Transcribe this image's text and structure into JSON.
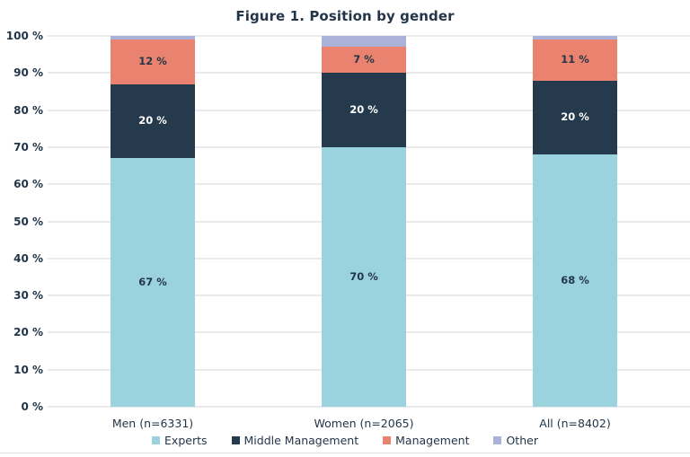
{
  "title": "Figure 1. Position by gender",
  "chart_data": {
    "type": "bar",
    "subtype": "stacked_percentage_column",
    "title": "Figure 1. Position by gender",
    "categories": [
      "Men (n=6331)",
      "Women (n=2065)",
      "All (n=8402)"
    ],
    "series": [
      {
        "name": "Experts",
        "color": "#9ad2de",
        "values": [
          67,
          70,
          68
        ],
        "labels": [
          "67 %",
          "70 %",
          "68 %"
        ],
        "label_color": "#233649"
      },
      {
        "name": "Middle Management",
        "color": "#263a4d",
        "values": [
          20,
          20,
          20
        ],
        "labels": [
          "20 %",
          "20 %",
          "20 %"
        ],
        "label_color": "#ffffff"
      },
      {
        "name": "Management",
        "color": "#e9836f",
        "values": [
          12,
          7,
          11
        ],
        "labels": [
          "12 %",
          "7 %",
          "11 %"
        ],
        "label_color": "#233649"
      },
      {
        "name": "Other",
        "color": "#aab2d9",
        "values": [
          1,
          3,
          1
        ],
        "labels": [
          "",
          "",
          ""
        ],
        "label_color": "#233649"
      }
    ],
    "yticks": [
      "100 %",
      "90 %",
      "80 %",
      "70 %",
      "60 %",
      "50 %",
      "40 %",
      "30 %",
      "20 %",
      "10 %",
      "0 %"
    ],
    "ylabel": "",
    "xlabel": "",
    "ylim": [
      0,
      100
    ],
    "grid": "horizontal",
    "legend_position": "bottom",
    "legend": [
      "Experts",
      "Middle Management",
      "Management",
      "Other"
    ]
  },
  "style": {
    "text_color": "#233649",
    "gridline_color": "#eaeaec",
    "background": "#ffffff"
  }
}
